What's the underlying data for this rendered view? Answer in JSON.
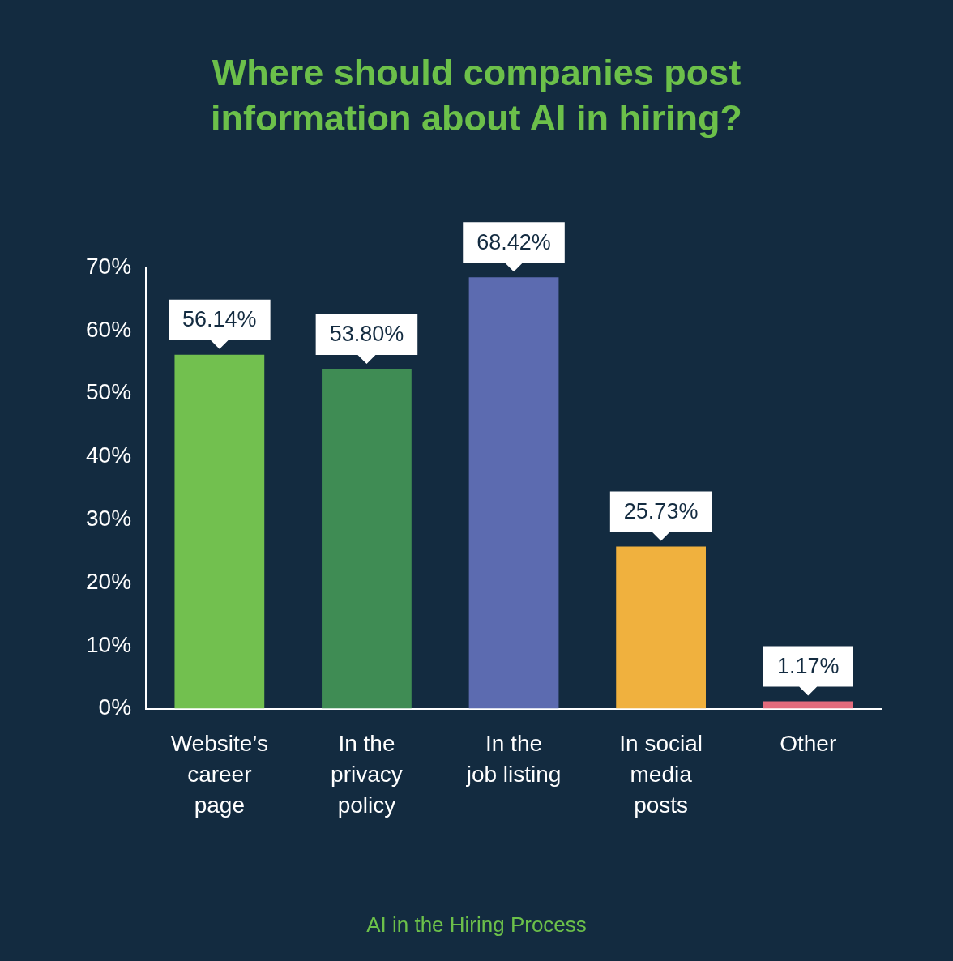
{
  "chart_data": {
    "type": "bar",
    "title": "Where should companies post information about AI in hiring?",
    "categories": [
      "Website’s\ncareer\npage",
      "In the\nprivacy\npolicy",
      "In the\njob listing",
      "In social\nmedia\nposts",
      "Other"
    ],
    "values": [
      56.14,
      53.8,
      68.42,
      25.73,
      1.17
    ],
    "colors": [
      "#72c04f",
      "#3f8c54",
      "#5c6bb0",
      "#f0b13e",
      "#e36b7c"
    ],
    "value_labels": [
      "56.14%",
      "53.80%",
      "68.42%",
      "25.73%",
      "1.17%"
    ],
    "ylim": [
      0,
      70
    ],
    "yticks": [
      {
        "value": 0,
        "label": "0%"
      },
      {
        "value": 10,
        "label": "10%"
      },
      {
        "value": 20,
        "label": "20%"
      },
      {
        "value": 30,
        "label": "30%"
      },
      {
        "value": 40,
        "label": "40%"
      },
      {
        "value": 50,
        "label": "50%"
      },
      {
        "value": 60,
        "label": "60%"
      },
      {
        "value": 70,
        "label": "70%"
      }
    ],
    "grid": false,
    "legend": false,
    "annotations": [
      "AI in the Hiring Process"
    ]
  }
}
